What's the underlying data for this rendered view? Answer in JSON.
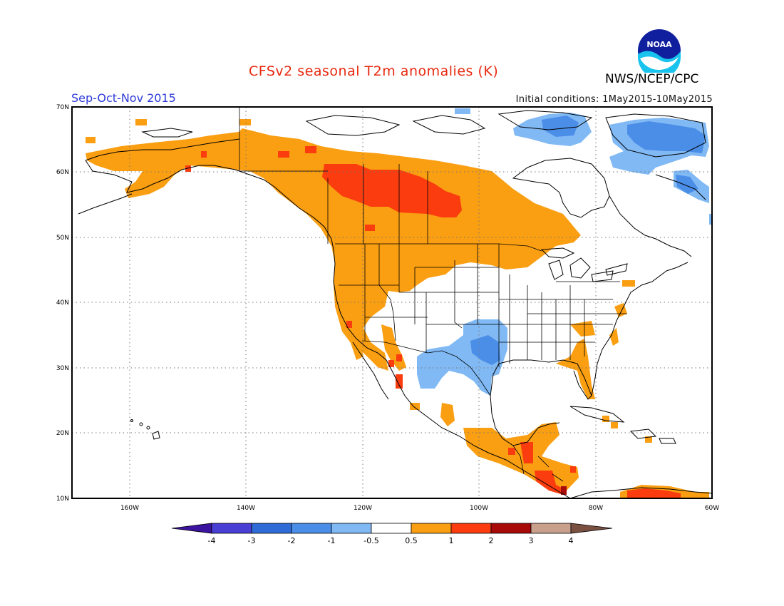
{
  "header": {
    "title": "CFSv2 seasonal T2m anomalies (K)",
    "period": "Sep-Oct-Nov 2015",
    "initial_conditions": "Initial conditions: 1May2015-10May2015",
    "agency": "NWS/NCEP/CPC",
    "logo_text": "NOAA",
    "logo_icon": "noaa-logo"
  },
  "map": {
    "projection": "lat-lon",
    "lon_range": [
      -170,
      -60
    ],
    "lat_range": [
      10,
      70
    ],
    "lat_labels": [
      "70N",
      "60N",
      "50N",
      "40N",
      "30N",
      "20N",
      "10N"
    ],
    "lon_labels": [
      "160W",
      "140W",
      "120W",
      "100W",
      "80W",
      "60W"
    ],
    "grid": "dotted",
    "regions": [
      {
        "name": "Alaska",
        "category": "0.5 to 1"
      },
      {
        "name": "Western Canada",
        "category": "0.5 to 1"
      },
      {
        "name": "Central-western Canada core",
        "category": "1 to 2"
      },
      {
        "name": "Pacific Northwest US",
        "category": "0.5 to 1"
      },
      {
        "name": "Northern Plains US",
        "category": "0.5 to 1"
      },
      {
        "name": "Southern Plains / Southwest US",
        "category": "-1 to -0.5"
      },
      {
        "name": "Eastern Canadian Arctic / Greenland",
        "category": "-1 to -0.5 / -2 to -1"
      },
      {
        "name": "Florida and Gulf coast",
        "category": "0.5 to 1"
      },
      {
        "name": "Central America",
        "category": "0.5 to 2"
      },
      {
        "name": "Southern Mexico",
        "category": "0.5 to 1"
      },
      {
        "name": "Northern South America",
        "category": "1 to 2"
      }
    ]
  },
  "colorbar": {
    "labels": [
      "-4",
      "-3",
      "-2",
      "-1",
      "-0.5",
      "0.5",
      "1",
      "2",
      "3",
      "4"
    ],
    "colors": [
      "#3b139e",
      "#4a3fd4",
      "#2f6bd6",
      "#4b8ee8",
      "#80b9f4",
      "#ffffff",
      "#fa9e12",
      "#fa3c0f",
      "#a80a0a",
      "#c9a08c",
      "#7a5040"
    ]
  }
}
